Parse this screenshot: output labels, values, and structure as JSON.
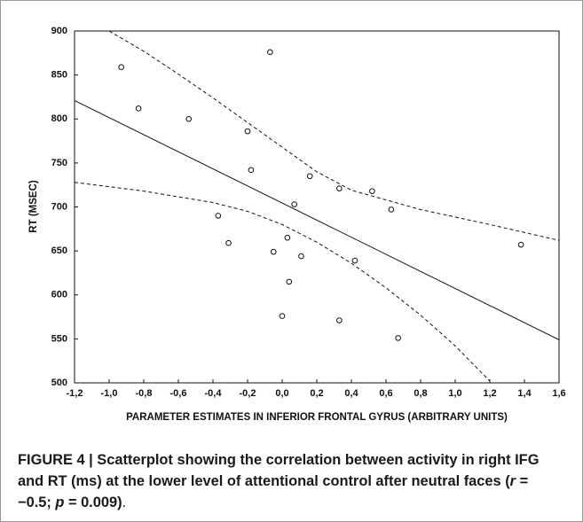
{
  "chart_data": {
    "type": "scatter",
    "xlabel": "PARAMETER ESTIMATES IN INFERIOR FRONTAL GYRUS (ARBITRARY UNITS)",
    "ylabel": "RT (MSEC)",
    "xlim": [
      -1.2,
      1.6
    ],
    "ylim": [
      500,
      900
    ],
    "xticks": [
      {
        "value": -1.2,
        "label": "-1,2"
      },
      {
        "value": -1.0,
        "label": "-1,0"
      },
      {
        "value": -0.8,
        "label": "-0,8"
      },
      {
        "value": -0.6,
        "label": "-0,6"
      },
      {
        "value": -0.4,
        "label": "-0,4"
      },
      {
        "value": -0.2,
        "label": "-0,2"
      },
      {
        "value": 0.0,
        "label": "0,0"
      },
      {
        "value": 0.2,
        "label": "0,2"
      },
      {
        "value": 0.4,
        "label": "0,4"
      },
      {
        "value": 0.6,
        "label": "0,6"
      },
      {
        "value": 0.8,
        "label": "0,8"
      },
      {
        "value": 1.0,
        "label": "1,0"
      },
      {
        "value": 1.2,
        "label": "1,2"
      },
      {
        "value": 1.4,
        "label": "1,4"
      },
      {
        "value": 1.6,
        "label": "1,6"
      }
    ],
    "yticks": [
      500,
      550,
      600,
      650,
      700,
      750,
      800,
      850,
      900
    ],
    "color": "#111111",
    "points": {
      "x": [
        -0.93,
        -0.83,
        -0.54,
        -0.07,
        -0.2,
        -0.18,
        -0.37,
        -0.31,
        -0.05,
        0.03,
        0.07,
        0.16,
        0.11,
        0.04,
        0.0,
        0.33,
        0.33,
        0.42,
        0.52,
        0.67,
        0.63,
        1.38
      ],
      "y": [
        859,
        812,
        800,
        876,
        786,
        742,
        690,
        659,
        649,
        665,
        703,
        735,
        644,
        615,
        576,
        571,
        721,
        639,
        718,
        551,
        697,
        657
      ]
    },
    "fit_line": {
      "x": [
        -1.2,
        1.6
      ],
      "y": [
        821,
        549
      ]
    },
    "confidence_upper": {
      "x": [
        -1.0,
        -0.8,
        -0.6,
        -0.4,
        -0.2,
        0.0,
        0.2,
        0.4,
        0.8,
        1.2,
        1.6
      ],
      "y": [
        900,
        877,
        851,
        824,
        796,
        768,
        740,
        719,
        697,
        680,
        662
      ]
    },
    "confidence_lower": {
      "x": [
        -1.2,
        -0.8,
        -0.4,
        -0.2,
        0.0,
        0.2,
        0.4,
        0.6,
        0.8,
        1.0,
        1.2
      ],
      "y": [
        728,
        718,
        705,
        695,
        680,
        660,
        636,
        608,
        577,
        542,
        502
      ]
    }
  },
  "caption": [
    "FIGURE 4 | Scatterplot showing the correlation between activity in right IFG and RT (ms) at the lower level of attentional control after neutral faces (",
    "r",
    " = −0.5; ",
    "p",
    " = 0.009)",
    "."
  ]
}
